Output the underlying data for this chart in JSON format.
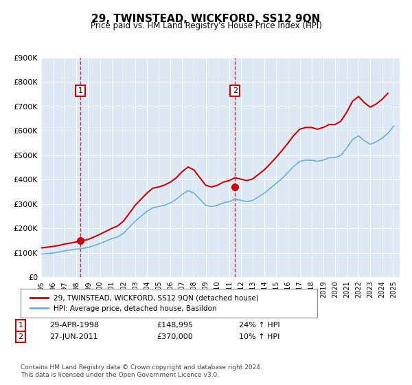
{
  "title": "29, TWINSTEAD, WICKFORD, SS12 9QN",
  "subtitle": "Price paid vs. HM Land Registry's House Price Index (HPI)",
  "sale1_date": "1998-04-29",
  "sale1_price": 148995,
  "sale1_label": "24% ↑ HPI",
  "sale2_date": "2011-06-27",
  "sale2_price": 370000,
  "sale2_label": "10% ↑ HPI",
  "legend_entry1": "29, TWINSTEAD, WICKFORD, SS12 9QN (detached house)",
  "legend_entry2": "HPI: Average price, detached house, Basildon",
  "table_row1": [
    "1",
    "29-APR-1998",
    "£148,995",
    "24% ↑ HPI"
  ],
  "table_row2": [
    "2",
    "27-JUN-2011",
    "£370,000",
    "10% ↑ HPI"
  ],
  "footer1": "Contains HM Land Registry data © Crown copyright and database right 2024.",
  "footer2": "This data is licensed under the Open Government Licence v3.0.",
  "hpi_color": "#6baed6",
  "price_color": "#cc0000",
  "vline_color": "#cc0000",
  "bg_color": "#dce9f5",
  "ylim_max": 900000,
  "ylim_min": 0
}
